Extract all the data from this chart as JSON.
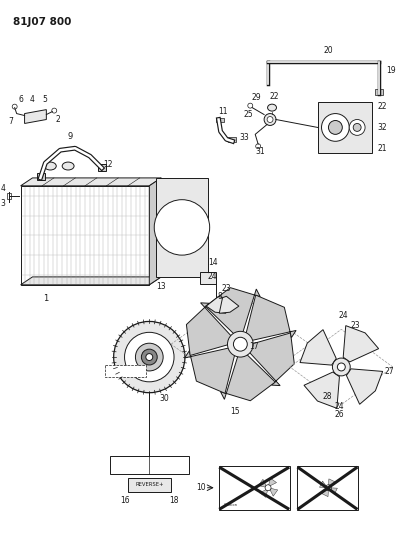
{
  "title": "81J07 800",
  "bg_color": "#ffffff",
  "fg_color": "#1a1a1a",
  "fig_width": 4.12,
  "fig_height": 5.33,
  "dpi": 100,
  "lw": 0.7
}
